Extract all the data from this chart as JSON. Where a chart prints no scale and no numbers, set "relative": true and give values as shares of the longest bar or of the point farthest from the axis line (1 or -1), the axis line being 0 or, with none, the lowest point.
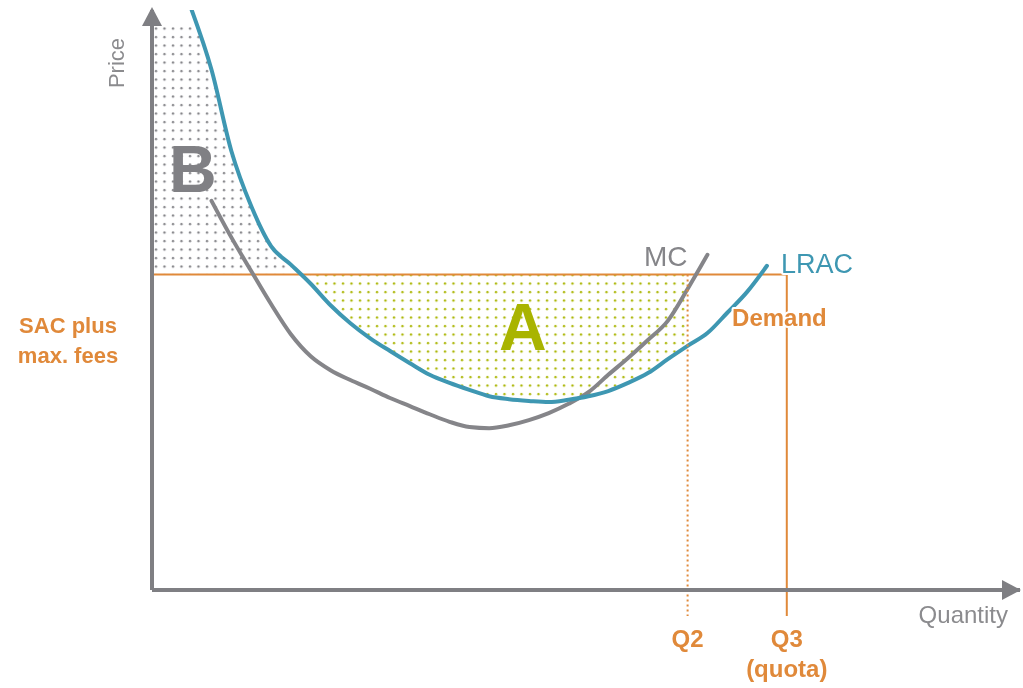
{
  "chart_data": {
    "type": "line",
    "relative": true,
    "xlabel": "Quantity",
    "ylabel": "Price",
    "categories": [
      null,
      null,
      null,
      null,
      null,
      null,
      null,
      null,
      null,
      null,
      null,
      null,
      null,
      null,
      null,
      null,
      null,
      null,
      null,
      null,
      null,
      null,
      null,
      null,
      null,
      null,
      null,
      "Q2",
      null,
      null,
      null,
      null,
      "Q3 (quota)",
      null,
      null,
      null,
      null,
      null,
      null,
      null,
      null,
      null,
      null,
      null
    ],
    "series": [
      {
        "name": "Demand",
        "color": "#e0893a",
        "values": [
          0.544,
          0.544,
          0.544,
          0.544,
          0.544,
          0.544,
          0.544,
          0.544,
          0.544,
          0.544,
          0.544,
          0.544,
          0.544,
          0.544,
          0.544,
          0.544,
          0.544,
          0.544,
          0.544,
          0.544,
          0.544,
          0.544,
          0.544,
          0.544,
          0.544,
          0.544,
          0.544,
          0.544,
          0.544,
          0.544,
          0.544,
          0.544,
          0.544,
          null,
          null,
          null,
          null,
          null,
          null,
          null,
          null,
          null,
          null,
          null
        ]
      },
      {
        "name": "MC",
        "color": "#858589",
        "values": [
          null,
          null,
          null,
          0.671,
          0.608,
          0.55,
          0.493,
          0.441,
          0.403,
          0.379,
          0.362,
          0.347,
          0.331,
          0.317,
          0.303,
          0.29,
          0.281,
          0.279,
          0.284,
          0.293,
          0.305,
          0.321,
          0.341,
          0.371,
          0.4,
          0.431,
          0.464,
          0.519,
          0.578,
          null,
          null,
          null,
          null,
          null,
          null,
          null,
          null,
          null,
          null,
          null,
          null,
          null,
          null,
          null
        ]
      },
      {
        "name": "LRAC",
        "color": "#3e97b2",
        "values": [
          null,
          null,
          1.0,
          0.897,
          0.757,
          0.662,
          0.593,
          0.561,
          0.528,
          0.491,
          0.46,
          0.434,
          0.412,
          0.391,
          0.371,
          0.357,
          0.345,
          0.334,
          0.329,
          0.326,
          0.324,
          0.328,
          0.334,
          0.343,
          0.357,
          0.374,
          0.398,
          0.421,
          0.443,
          0.478,
          0.514,
          0.559,
          null,
          null,
          null,
          null,
          null,
          null,
          null,
          null,
          null,
          null,
          null,
          null
        ]
      },
      {
        "name": "A",
        "color": "#a9b400",
        "values": [
          null,
          null,
          null,
          null,
          null,
          null,
          null,
          null,
          null,
          null,
          null,
          null,
          null,
          null,
          null,
          null,
          null,
          null,
          null,
          null,
          null,
          null,
          null,
          null,
          null,
          null,
          null,
          null,
          null,
          null,
          null,
          null,
          null,
          null,
          null,
          null,
          null,
          null,
          null,
          null,
          null,
          null,
          null,
          null
        ],
        "lower": [
          null,
          null,
          null,
          null,
          null,
          null,
          null,
          null,
          0.528,
          0.491,
          0.46,
          0.434,
          0.412,
          0.391,
          0.371,
          0.357,
          0.345,
          0.334,
          0.329,
          0.326,
          0.324,
          0.328,
          0.334,
          0.343,
          0.357,
          0.374,
          0.398,
          0.421,
          null,
          null,
          null,
          null,
          null,
          null,
          null,
          null,
          null,
          null,
          null,
          null,
          null,
          null,
          null,
          null
        ],
        "upper": [
          null,
          null,
          null,
          null,
          null,
          null,
          null,
          null,
          0.544,
          0.544,
          0.544,
          0.544,
          0.544,
          0.544,
          0.544,
          0.544,
          0.544,
          0.544,
          0.544,
          0.544,
          0.544,
          0.544,
          0.544,
          0.544,
          0.544,
          0.544,
          0.544,
          0.544,
          null,
          null,
          null,
          null,
          null,
          null,
          null,
          null,
          null,
          null,
          null,
          null,
          null,
          null,
          null,
          null
        ]
      },
      {
        "name": "B",
        "color": "#808084",
        "values": [
          null,
          null,
          null,
          null,
          null,
          null,
          null,
          null,
          null,
          null,
          null,
          null,
          null,
          null,
          null,
          null,
          null,
          null,
          null,
          null,
          null,
          null,
          null,
          null,
          null,
          null,
          null,
          null,
          null,
          null,
          null,
          null,
          null,
          null,
          null,
          null,
          null,
          null,
          null,
          null,
          null,
          null,
          null,
          null
        ],
        "lower": [
          0.544,
          0.544,
          0.544,
          0.544,
          0.544,
          0.544,
          0.544,
          0.544,
          null,
          null,
          null,
          null,
          null,
          null,
          null,
          null,
          null,
          null,
          null,
          null,
          null,
          null,
          null,
          null,
          null,
          null,
          null,
          null,
          null,
          null,
          null,
          null,
          null,
          null,
          null,
          null,
          null,
          null,
          null,
          null,
          null,
          null,
          null,
          null
        ],
        "upper": [
          0.974,
          0.974,
          0.974,
          0.897,
          0.757,
          0.662,
          0.593,
          0.561,
          null,
          null,
          null,
          null,
          null,
          null,
          null,
          null,
          null,
          null,
          null,
          null,
          null,
          null,
          null,
          null,
          null,
          null,
          null,
          null,
          null,
          null,
          null,
          null,
          null,
          null,
          null,
          null,
          null,
          null,
          null,
          null,
          null,
          null,
          null,
          null
        ]
      }
    ],
    "ref_lines": [
      {
        "axis": "x",
        "value": "Q2",
        "color": "#e0893a",
        "line_style": "dotted"
      },
      {
        "axis": "x",
        "value": "Q3 (quota)",
        "color": "#e0893a",
        "line_style": "solid"
      }
    ],
    "annotations": [
      "SAC plus max. fees"
    ]
  }
}
